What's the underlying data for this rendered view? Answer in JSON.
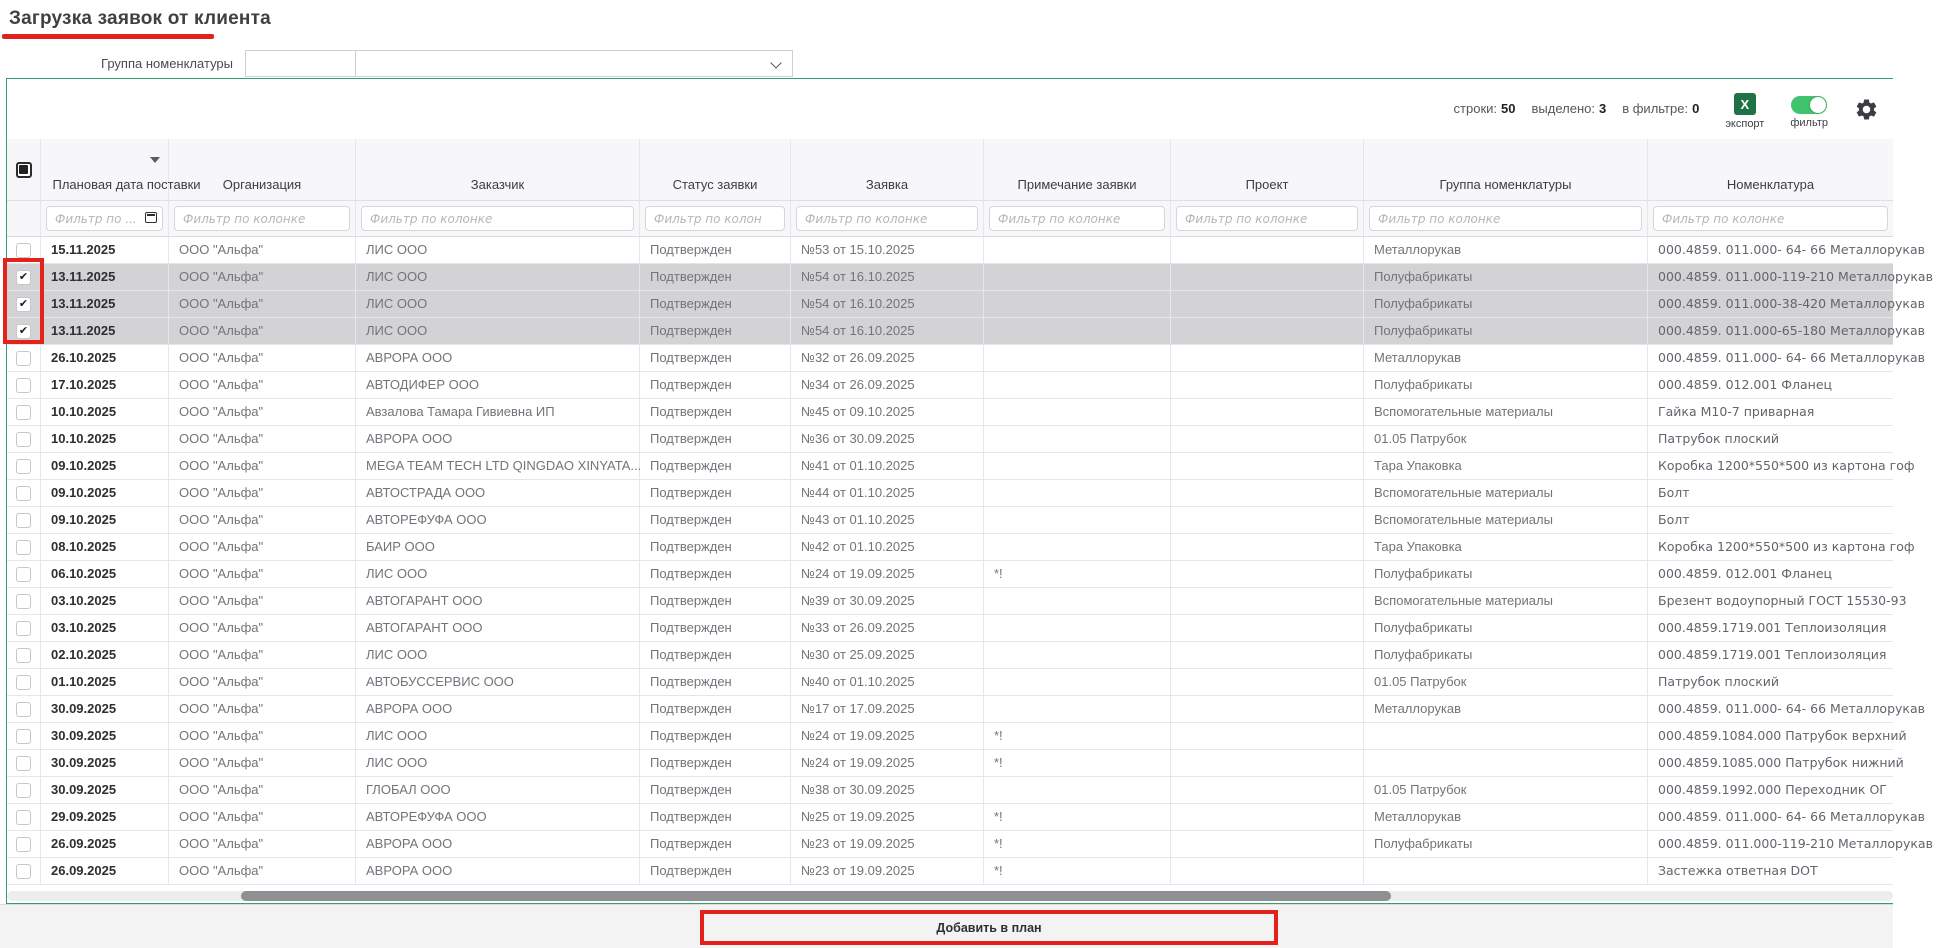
{
  "page": {
    "title": "Загрузка заявок от клиента"
  },
  "filter_form": {
    "group_label": "Группа номенклатуры",
    "group_code_value": "",
    "group_select_value": ""
  },
  "toolbar": {
    "rows_label": "строки:",
    "rows_value": "50",
    "selected_label": "выделено:",
    "selected_value": "3",
    "in_filter_label": "в фильтре:",
    "in_filter_value": "0",
    "export_icon_letter": "X",
    "export_label": "экспорт",
    "filter_toggle_label": "фильтр",
    "filter_toggle_on": true
  },
  "table": {
    "columns": [
      {
        "key": "date",
        "label": "Плановая дата поставки",
        "sorted_desc": true
      },
      {
        "key": "org",
        "label": "Организация"
      },
      {
        "key": "customer",
        "label": "Заказчик"
      },
      {
        "key": "status",
        "label": "Статус заявки"
      },
      {
        "key": "request",
        "label": "Заявка"
      },
      {
        "key": "note",
        "label": "Примечание заявки"
      },
      {
        "key": "project",
        "label": "Проект"
      },
      {
        "key": "group",
        "label": "Группа номенклатуры"
      },
      {
        "key": "item",
        "label": "Номенклатура"
      }
    ],
    "filter_placeholder_date": "Фильтр по ...",
    "filter_placeholder": "Фильтр по колонке",
    "rows": [
      {
        "checked": false,
        "selected": false,
        "date": "15.11.2025",
        "org": "ООО \"Альфа\"",
        "customer": "ЛИС ООО",
        "status": "Подтвержден",
        "request": "№53 от 15.10.2025",
        "note": "",
        "project": "",
        "group": "Металлорукав",
        "item": "000.4859. 011.000- 64- 66 Металлорукав"
      },
      {
        "checked": true,
        "selected": true,
        "date": "13.11.2025",
        "org": "ООО \"Альфа\"",
        "customer": "ЛИС ООО",
        "status": "Подтвержден",
        "request": "№54 от 16.10.2025",
        "note": "",
        "project": "",
        "group": "Полуфабрикаты",
        "item": "000.4859. 011.000-119-210 Металлорукав"
      },
      {
        "checked": true,
        "selected": true,
        "date": "13.11.2025",
        "org": "ООО \"Альфа\"",
        "customer": "ЛИС ООО",
        "status": "Подтвержден",
        "request": "№54 от 16.10.2025",
        "note": "",
        "project": "",
        "group": "Полуфабрикаты",
        "item": "000.4859. 011.000-38-420 Металлорукав"
      },
      {
        "checked": true,
        "selected": true,
        "date": "13.11.2025",
        "org": "ООО \"Альфа\"",
        "customer": "ЛИС ООО",
        "status": "Подтвержден",
        "request": "№54 от 16.10.2025",
        "note": "",
        "project": "",
        "group": "Полуфабрикаты",
        "item": "000.4859. 011.000-65-180 Металлорукав"
      },
      {
        "checked": false,
        "selected": false,
        "date": "26.10.2025",
        "org": "ООО \"Альфа\"",
        "customer": "АВРОРА ООО",
        "status": "Подтвержден",
        "request": "№32 от 26.09.2025",
        "note": "",
        "project": "",
        "group": "Металлорукав",
        "item": "000.4859. 011.000- 64- 66 Металлорукав"
      },
      {
        "checked": false,
        "selected": false,
        "date": "17.10.2025",
        "org": "ООО \"Альфа\"",
        "customer": "АВТОДИФЕР ООО",
        "status": "Подтвержден",
        "request": "№34 от 26.09.2025",
        "note": "",
        "project": "",
        "group": "Полуфабрикаты",
        "item": "000.4859. 012.001 Фланец"
      },
      {
        "checked": false,
        "selected": false,
        "date": "10.10.2025",
        "org": "ООО \"Альфа\"",
        "customer": "Авзалова Тамара Гивиевна ИП",
        "status": "Подтвержден",
        "request": "№45 от 09.10.2025",
        "note": "",
        "project": "",
        "group": "Вспомогательные материалы",
        "item": "Гайка М10-7 приварная"
      },
      {
        "checked": false,
        "selected": false,
        "date": "10.10.2025",
        "org": "ООО \"Альфа\"",
        "customer": "АВРОРА ООО",
        "status": "Подтвержден",
        "request": "№36 от 30.09.2025",
        "note": "",
        "project": "",
        "group": "01.05 Патрубок",
        "item": "Патрубок плоский"
      },
      {
        "checked": false,
        "selected": false,
        "date": "09.10.2025",
        "org": "ООО \"Альфа\"",
        "customer": "MEGA TEAM TECH LTD QINGDAO XINYATA...",
        "status": "Подтвержден",
        "request": "№41 от 01.10.2025",
        "note": "",
        "project": "",
        "group": "Тара Упаковка",
        "item": "Коробка 1200*550*500 из картона гоф"
      },
      {
        "checked": false,
        "selected": false,
        "date": "09.10.2025",
        "org": "ООО \"Альфа\"",
        "customer": "АВТОСТРАДА ООО",
        "status": "Подтвержден",
        "request": "№44 от 01.10.2025",
        "note": "",
        "project": "",
        "group": "Вспомогательные материалы",
        "item": "Болт"
      },
      {
        "checked": false,
        "selected": false,
        "date": "09.10.2025",
        "org": "ООО \"Альфа\"",
        "customer": "АВТОРЕФУФА ООО",
        "status": "Подтвержден",
        "request": "№43 от 01.10.2025",
        "note": "",
        "project": "",
        "group": "Вспомогательные материалы",
        "item": "Болт"
      },
      {
        "checked": false,
        "selected": false,
        "date": "08.10.2025",
        "org": "ООО \"Альфа\"",
        "customer": "БАИР ООО",
        "status": "Подтвержден",
        "request": "№42 от 01.10.2025",
        "note": "",
        "project": "",
        "group": "Тара Упаковка",
        "item": "Коробка 1200*550*500 из картона гоф"
      },
      {
        "checked": false,
        "selected": false,
        "date": "06.10.2025",
        "org": "ООО \"Альфа\"",
        "customer": "ЛИС ООО",
        "status": "Подтвержден",
        "request": "№24 от 19.09.2025",
        "note": "*!",
        "project": "",
        "group": "Полуфабрикаты",
        "item": "000.4859. 012.001 Фланец"
      },
      {
        "checked": false,
        "selected": false,
        "date": "03.10.2025",
        "org": "ООО \"Альфа\"",
        "customer": "АВТОГАРАНТ ООО",
        "status": "Подтвержден",
        "request": "№39 от 30.09.2025",
        "note": "",
        "project": "",
        "group": "Вспомогательные материалы",
        "item": "Брезент водоупорный ГОСТ 15530-93"
      },
      {
        "checked": false,
        "selected": false,
        "date": "03.10.2025",
        "org": "ООО \"Альфа\"",
        "customer": "АВТОГАРАНТ ООО",
        "status": "Подтвержден",
        "request": "№33 от 26.09.2025",
        "note": "",
        "project": "",
        "group": "Полуфабрикаты",
        "item": "000.4859.1719.001 Теплоизоляция"
      },
      {
        "checked": false,
        "selected": false,
        "date": "02.10.2025",
        "org": "ООО \"Альфа\"",
        "customer": "ЛИС ООО",
        "status": "Подтвержден",
        "request": "№30 от 25.09.2025",
        "note": "",
        "project": "",
        "group": "Полуфабрикаты",
        "item": "000.4859.1719.001 Теплоизоляция"
      },
      {
        "checked": false,
        "selected": false,
        "date": "01.10.2025",
        "org": "ООО \"Альфа\"",
        "customer": "АВТОБУССЕРВИС ООО",
        "status": "Подтвержден",
        "request": "№40 от 01.10.2025",
        "note": "",
        "project": "",
        "group": "01.05 Патрубок",
        "item": "Патрубок плоский"
      },
      {
        "checked": false,
        "selected": false,
        "date": "30.09.2025",
        "org": "ООО \"Альфа\"",
        "customer": "АВРОРА ООО",
        "status": "Подтвержден",
        "request": "№17 от 17.09.2025",
        "note": "",
        "project": "",
        "group": "Металлорукав",
        "item": "000.4859. 011.000- 64- 66 Металлорукав"
      },
      {
        "checked": false,
        "selected": false,
        "date": "30.09.2025",
        "org": "ООО \"Альфа\"",
        "customer": "ЛИС ООО",
        "status": "Подтвержден",
        "request": "№24 от 19.09.2025",
        "note": "*!",
        "project": "",
        "group": "",
        "item": "000.4859.1084.000 Патрубок верхний"
      },
      {
        "checked": false,
        "selected": false,
        "date": "30.09.2025",
        "org": "ООО \"Альфа\"",
        "customer": "ЛИС ООО",
        "status": "Подтвержден",
        "request": "№24 от 19.09.2025",
        "note": "*!",
        "project": "",
        "group": "",
        "item": "000.4859.1085.000 Патрубок нижний"
      },
      {
        "checked": false,
        "selected": false,
        "date": "30.09.2025",
        "org": "ООО \"Альфа\"",
        "customer": "ГЛОБАЛ ООО",
        "status": "Подтвержден",
        "request": "№38 от 30.09.2025",
        "note": "",
        "project": "",
        "group": "01.05 Патрубок",
        "item": "000.4859.1992.000 Переходник ОГ"
      },
      {
        "checked": false,
        "selected": false,
        "date": "29.09.2025",
        "org": "ООО \"Альфа\"",
        "customer": "АВТОРЕФУФА ООО",
        "status": "Подтвержден",
        "request": "№25 от 19.09.2025",
        "note": "*!",
        "project": "",
        "group": "Металлорукав",
        "item": "000.4859. 011.000- 64- 66 Металлорукав"
      },
      {
        "checked": false,
        "selected": false,
        "date": "26.09.2025",
        "org": "ООО \"Альфа\"",
        "customer": "АВРОРА ООО",
        "status": "Подтвержден",
        "request": "№23 от 19.09.2025",
        "note": "*!",
        "project": "",
        "group": "Полуфабрикаты",
        "item": "000.4859. 011.000-119-210 Металлорукав"
      },
      {
        "checked": false,
        "selected": false,
        "date": "26.09.2025",
        "org": "ООО \"Альфа\"",
        "customer": "АВРОРА ООО",
        "status": "Подтвержден",
        "request": "№23 от 19.09.2025",
        "note": "*!",
        "project": "",
        "group": "",
        "item": "Застежка ответная DOT"
      }
    ]
  },
  "footer": {
    "add_button_label": "Добавить в план"
  },
  "colors": {
    "panel_border": "#33a06a",
    "annotation_red": "#e3221b",
    "export_green": "#1f7244",
    "toggle_green": "#3fc36f",
    "selected_row_bg": "#d3d3d5"
  }
}
